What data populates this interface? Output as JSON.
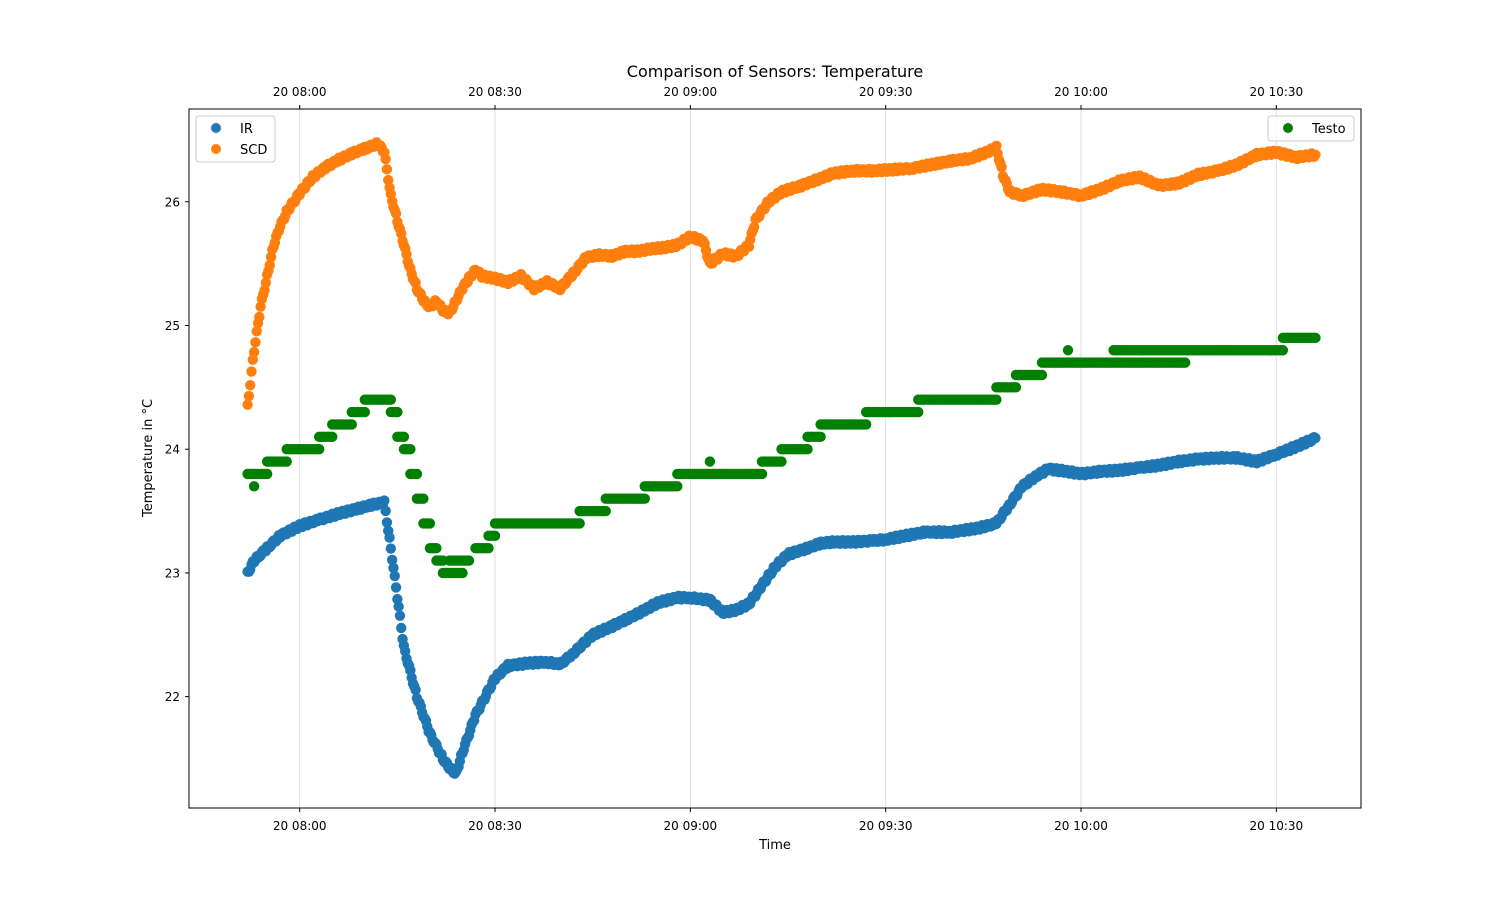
{
  "chart_data": {
    "type": "scatter",
    "title": "Comparison of Sensors: Temperature",
    "xlabel": "Time",
    "ylabel": "Temperature in °C",
    "date_prefix": "20",
    "xlim": [
      "07:43",
      "10:43"
    ],
    "ylim": [
      21.1,
      26.75
    ],
    "x_ticks": [
      "08:00",
      "08:30",
      "09:00",
      "09:30",
      "10:00",
      "10:30"
    ],
    "x_tick_labels": [
      "20 08:00",
      "20 08:30",
      "20 09:00",
      "20 09:30",
      "20 10:00",
      "20 10:30"
    ],
    "secondary_x_tick_labels": [
      "20 08:00",
      "20 08:30",
      "20 09:00",
      "20 09:30",
      "20 10:00",
      "20 10:30"
    ],
    "y_ticks": [
      22,
      23,
      24,
      25,
      26
    ],
    "y_tick_labels": [
      "22",
      "23",
      "24",
      "25",
      "26"
    ],
    "x_grid": true,
    "y_grid": false,
    "legends": [
      {
        "placement": "top-left",
        "entries": [
          "IR",
          "SCD"
        ]
      },
      {
        "placement": "top-right",
        "entries": [
          "Testo"
        ]
      }
    ],
    "series": [
      {
        "name": "IR",
        "color": "#1f77b4",
        "x": [
          "07:52",
          "07:53",
          "07:55",
          "07:57",
          "08:00",
          "08:03",
          "08:06",
          "08:09",
          "08:11",
          "08:13",
          "08:14",
          "08:15",
          "08:16",
          "08:18",
          "08:20",
          "08:22",
          "08:23",
          "08:24",
          "08:25",
          "08:27",
          "08:30",
          "08:32",
          "08:35",
          "08:38",
          "08:40",
          "08:42",
          "08:45",
          "08:48",
          "08:50",
          "08:53",
          "08:55",
          "08:58",
          "09:00",
          "09:03",
          "09:05",
          "09:07",
          "09:09",
          "09:11",
          "09:13",
          "09:15",
          "09:18",
          "09:20",
          "09:22",
          "09:25",
          "09:28",
          "09:30",
          "09:33",
          "09:36",
          "09:40",
          "09:44",
          "09:47",
          "09:49",
          "09:51",
          "09:53",
          "09:55",
          "09:58",
          "10:00",
          "10:03",
          "10:06",
          "10:09",
          "10:12",
          "10:15",
          "10:18",
          "10:21",
          "10:24",
          "10:27",
          "10:30",
          "10:33",
          "10:36"
        ],
        "y": [
          23.0,
          23.1,
          23.2,
          23.3,
          23.38,
          23.43,
          23.48,
          23.52,
          23.55,
          23.57,
          23.2,
          22.8,
          22.4,
          22.0,
          21.7,
          21.5,
          21.42,
          21.38,
          21.55,
          21.85,
          22.15,
          22.25,
          22.27,
          22.28,
          22.26,
          22.35,
          22.5,
          22.57,
          22.62,
          22.7,
          22.76,
          22.8,
          22.8,
          22.78,
          22.68,
          22.7,
          22.75,
          22.9,
          23.05,
          23.15,
          23.2,
          23.24,
          23.25,
          23.25,
          23.26,
          23.27,
          23.3,
          23.33,
          23.33,
          23.36,
          23.4,
          23.55,
          23.7,
          23.78,
          23.84,
          23.82,
          23.8,
          23.82,
          23.83,
          23.85,
          23.87,
          23.9,
          23.92,
          23.93,
          23.93,
          23.9,
          23.96,
          24.02,
          24.09
        ]
      },
      {
        "name": "SCD",
        "color": "#ff7f0e",
        "x": [
          "07:52",
          "07:53",
          "07:54",
          "07:55",
          "07:56",
          "07:57",
          "07:58",
          "08:00",
          "08:02",
          "08:04",
          "08:06",
          "08:08",
          "08:10",
          "08:12",
          "08:13",
          "08:14",
          "08:15",
          "08:16",
          "08:17",
          "08:18",
          "08:19",
          "08:20",
          "08:21",
          "08:22",
          "08:23",
          "08:24",
          "08:25",
          "08:26",
          "08:27",
          "08:28",
          "08:30",
          "08:32",
          "08:34",
          "08:36",
          "08:38",
          "08:40",
          "08:42",
          "08:44",
          "08:46",
          "08:48",
          "08:50",
          "08:52",
          "08:54",
          "08:56",
          "08:58",
          "09:00",
          "09:02",
          "09:03",
          "09:05",
          "09:07",
          "09:09",
          "09:10",
          "09:12",
          "09:14",
          "09:17",
          "09:20",
          "09:22",
          "09:25",
          "09:28",
          "09:31",
          "09:34",
          "09:37",
          "09:40",
          "09:43",
          "09:46",
          "09:47",
          "09:48",
          "09:49",
          "09:51",
          "09:54",
          "09:57",
          "10:00",
          "10:03",
          "10:06",
          "10:09",
          "10:12",
          "10:15",
          "10:18",
          "10:21",
          "10:24",
          "10:27",
          "10:30",
          "10:33",
          "10:36"
        ],
        "y": [
          24.35,
          24.8,
          25.15,
          25.4,
          25.65,
          25.8,
          25.92,
          26.07,
          26.2,
          26.28,
          26.34,
          26.39,
          26.43,
          26.47,
          26.4,
          26.05,
          25.85,
          25.65,
          25.45,
          25.3,
          25.2,
          25.15,
          25.2,
          25.12,
          25.1,
          25.2,
          25.3,
          25.38,
          25.45,
          25.4,
          25.38,
          25.35,
          25.4,
          25.3,
          25.35,
          25.3,
          25.42,
          25.55,
          25.57,
          25.56,
          25.6,
          25.6,
          25.62,
          25.63,
          25.65,
          25.72,
          25.68,
          25.5,
          25.58,
          25.56,
          25.65,
          25.85,
          26.0,
          26.08,
          26.13,
          26.19,
          26.23,
          26.25,
          26.25,
          26.26,
          26.27,
          26.3,
          26.33,
          26.35,
          26.41,
          26.44,
          26.22,
          26.08,
          26.05,
          26.1,
          26.08,
          26.05,
          26.1,
          26.17,
          26.2,
          26.13,
          26.15,
          26.22,
          26.25,
          26.3,
          26.38,
          26.4,
          26.36,
          26.38
        ]
      },
      {
        "name": "Testo",
        "color": "#008000",
        "steps": [
          {
            "from": "07:52",
            "to": "07:55",
            "value": 23.8
          },
          {
            "from": "07:55",
            "to": "07:58",
            "value": 23.9
          },
          {
            "from": "07:58",
            "to": "08:03",
            "value": 24.0
          },
          {
            "from": "08:03",
            "to": "08:05",
            "value": 24.1
          },
          {
            "from": "08:05",
            "to": "08:08",
            "value": 24.2
          },
          {
            "from": "08:08",
            "to": "08:10",
            "value": 24.3
          },
          {
            "from": "08:10",
            "to": "08:14",
            "value": 24.4
          },
          {
            "from": "08:14",
            "to": "08:15",
            "value": 24.3
          },
          {
            "from": "08:15",
            "to": "08:16",
            "value": 24.1
          },
          {
            "from": "08:16",
            "to": "08:17",
            "value": 24.0
          },
          {
            "from": "08:17",
            "to": "08:18",
            "value": 23.8
          },
          {
            "from": "08:18",
            "to": "08:19",
            "value": 23.6
          },
          {
            "from": "08:19",
            "to": "08:20",
            "value": 23.4
          },
          {
            "from": "08:20",
            "to": "08:21",
            "value": 23.2
          },
          {
            "from": "08:21",
            "to": "08:22",
            "value": 23.1
          },
          {
            "from": "08:22",
            "to": "08:25",
            "value": 23.0
          },
          {
            "from": "08:23",
            "to": "08:26",
            "value": 23.1
          },
          {
            "from": "08:27",
            "to": "08:29",
            "value": 23.2
          },
          {
            "from": "08:29",
            "to": "08:30",
            "value": 23.3
          },
          {
            "from": "08:30",
            "to": "08:43",
            "value": 23.4
          },
          {
            "from": "08:43",
            "to": "08:47",
            "value": 23.5
          },
          {
            "from": "08:47",
            "to": "08:53",
            "value": 23.6
          },
          {
            "from": "08:53",
            "to": "08:58",
            "value": 23.7
          },
          {
            "from": "08:58",
            "to": "09:11",
            "value": 23.8
          },
          {
            "from": "09:11",
            "to": "09:14",
            "value": 23.9
          },
          {
            "from": "09:14",
            "to": "09:18",
            "value": 24.0
          },
          {
            "from": "09:18",
            "to": "09:20",
            "value": 24.1
          },
          {
            "from": "09:20",
            "to": "09:27",
            "value": 24.2
          },
          {
            "from": "09:27",
            "to": "09:35",
            "value": 24.3
          },
          {
            "from": "09:35",
            "to": "09:47",
            "value": 24.4
          },
          {
            "from": "09:47",
            "to": "09:50",
            "value": 24.5
          },
          {
            "from": "09:50",
            "to": "09:54",
            "value": 24.6
          },
          {
            "from": "09:54",
            "to": "10:16",
            "value": 24.7
          },
          {
            "from": "10:05",
            "to": "10:31",
            "value": 24.8
          },
          {
            "from": "10:31",
            "to": "10:36",
            "value": 24.9
          }
        ],
        "extra_points": [
          {
            "x": "07:53",
            "y": 23.7
          },
          {
            "x": "09:03",
            "y": 23.9
          },
          {
            "x": "09:58",
            "y": 24.8
          }
        ]
      }
    ]
  }
}
